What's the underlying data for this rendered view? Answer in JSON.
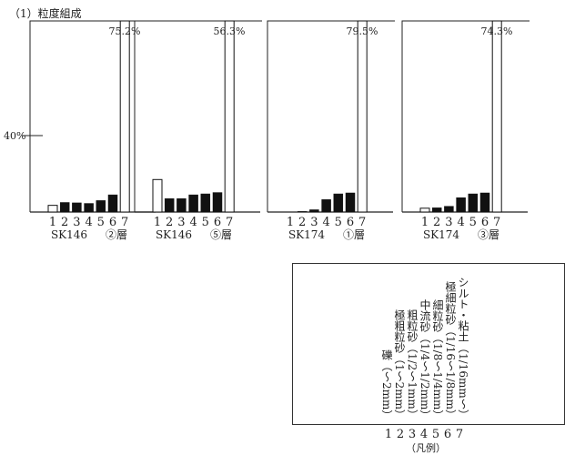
{
  "section_title": "（1）粒度組成",
  "chart_data": {
    "type": "bar",
    "y_tick_label": "40%",
    "y_tick_value": 40,
    "ylim": [
      0,
      100
    ],
    "categories": [
      "1",
      "2",
      "3",
      "4",
      "5",
      "6",
      "7"
    ],
    "panels": [
      {
        "sample": "SK146",
        "layer": "②層",
        "top_label": "75.2%",
        "values": [
          3.5,
          5.0,
          4.8,
          4.5,
          6.0,
          9.0,
          75.2
        ],
        "open_bars": [
          1,
          7
        ]
      },
      {
        "sample": "SK146",
        "layer": "⑤層",
        "top_label": "56.3%",
        "values": [
          17.0,
          7.0,
          7.0,
          9.0,
          9.5,
          10.2,
          56.3
        ],
        "open_bars": [
          1,
          7
        ]
      },
      {
        "sample": "SK174",
        "layer": "①層",
        "top_label": "79.5%",
        "values": [
          0.0,
          0.3,
          1.2,
          6.5,
          9.5,
          10.0,
          79.5
        ],
        "open_bars": [
          1,
          7
        ]
      },
      {
        "sample": "SK174",
        "layer": "③層",
        "top_label": "74.3%",
        "values": [
          2.0,
          2.2,
          3.0,
          7.5,
          9.5,
          10.0,
          74.3
        ],
        "open_bars": [
          1,
          7
        ]
      }
    ],
    "legend": {
      "items": [
        "礫（～2mm）",
        "極粗粒砂（1～2mm）",
        "粗粒砂（1/2～1mm）",
        "中流砂（1/4～1/2mm）",
        "細粒砂（1/8～1/4mm）",
        "極細粒砂（1/16～1/8mm）",
        "シルト・粘土（1/16mm～）"
      ],
      "numbers": [
        "1",
        "2",
        "3",
        "4",
        "5",
        "6",
        "7"
      ],
      "caption": "（凡例）"
    }
  }
}
